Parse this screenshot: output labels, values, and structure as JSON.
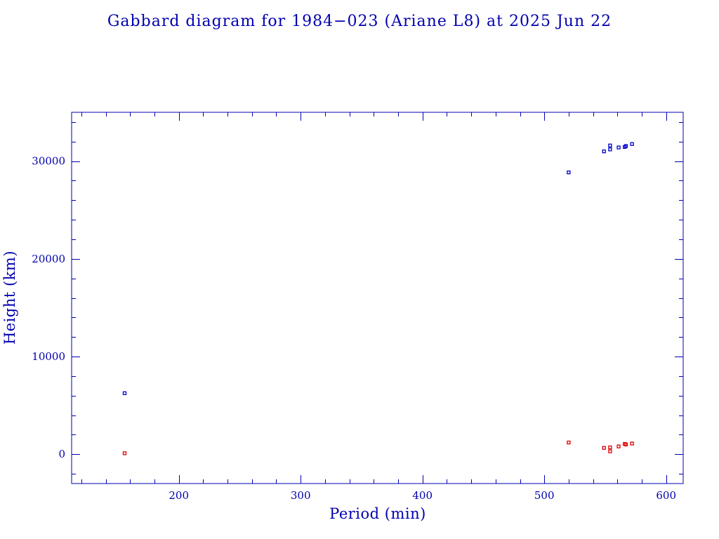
{
  "chart_data": {
    "type": "scatter",
    "title": "Gabbard diagram for 1984−023 (Ariane L8) at 2025 Jun 22",
    "xlabel": "Period (min)",
    "ylabel": "Height (km)",
    "xlim": [
      112,
      614
    ],
    "ylim": [
      -3000,
      35000
    ],
    "x_ticks": [
      200,
      300,
      400,
      500,
      600
    ],
    "y_ticks": [
      0,
      10000,
      20000,
      30000
    ],
    "x_tick_labels": [
      "200",
      "300",
      "400",
      "500",
      "600"
    ],
    "y_tick_labels": [
      "0",
      "10000",
      "20000",
      "30000"
    ],
    "grid": false,
    "legend": "none",
    "colors": {
      "axis": "#0000b0",
      "apogee": "#0000cc",
      "perigee": "#dd0000"
    },
    "series": [
      {
        "points": [
          [
            155.5,
            6250
          ],
          [
            520,
            28850
          ],
          [
            549,
            31000
          ],
          [
            554,
            31200
          ],
          [
            554,
            31600
          ],
          [
            561,
            31400
          ],
          [
            566,
            31450
          ],
          [
            567,
            31550
          ],
          [
            572,
            31750
          ]
        ]
      },
      {
        "points": [
          [
            155.5,
            100
          ],
          [
            520,
            1200
          ],
          [
            549,
            650
          ],
          [
            554,
            300
          ],
          [
            554,
            700
          ],
          [
            561,
            800
          ],
          [
            566,
            1050
          ],
          [
            567,
            1000
          ],
          [
            572,
            1100
          ]
        ]
      }
    ]
  }
}
